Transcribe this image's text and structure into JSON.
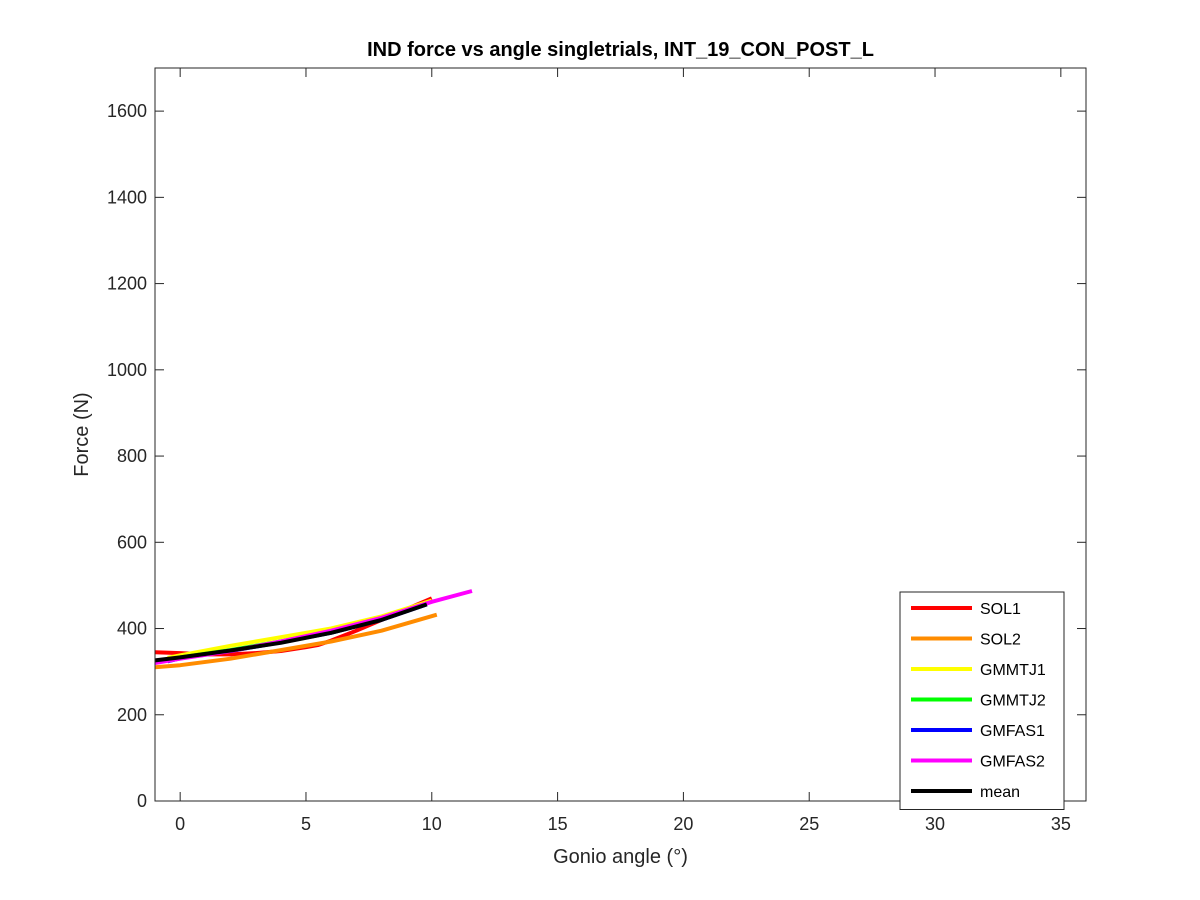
{
  "chart_data": {
    "type": "line",
    "title": "IND force vs angle singletrials, INT_19_CON_POST_L",
    "xlabel": "Gonio angle (°)",
    "ylabel": "Force (N)",
    "xlim": [
      -1,
      36
    ],
    "ylim": [
      0,
      1700
    ],
    "xticks": [
      0,
      5,
      10,
      15,
      20,
      25,
      30,
      35
    ],
    "yticks": [
      0,
      200,
      400,
      600,
      800,
      1000,
      1200,
      1400,
      1600
    ],
    "grid": false,
    "legend_position": "bottom-right",
    "series": [
      {
        "name": "SOL1",
        "color": "#ff0000",
        "x": [
          -1.0,
          0.0,
          1.0,
          2.0,
          3.0,
          4.0,
          5.0,
          5.5,
          6.0,
          7.0,
          8.0,
          9.0,
          10.0
        ],
        "y": [
          345,
          343,
          340,
          340,
          343,
          348,
          357,
          362,
          372,
          395,
          420,
          445,
          470
        ]
      },
      {
        "name": "SOL2",
        "color": "#ff8c00",
        "x": [
          -1.0,
          0.0,
          2.0,
          4.0,
          6.0,
          8.0,
          10.2
        ],
        "y": [
          310,
          315,
          330,
          350,
          370,
          395,
          432
        ]
      },
      {
        "name": "GMMTJ1",
        "color": "#ffff00",
        "x": [
          -0.5,
          0.0,
          2.0,
          4.0,
          6.0,
          8.0,
          10.0
        ],
        "y": [
          332,
          338,
          360,
          380,
          400,
          428,
          465
        ]
      },
      {
        "name": "GMMTJ2",
        "color": "#00ff00",
        "x": [
          -0.5,
          0.0,
          2.0,
          4.0,
          6.0,
          8.0,
          9.8
        ],
        "y": [
          326,
          333,
          350,
          370,
          393,
          422,
          458
        ]
      },
      {
        "name": "GMFAS1",
        "color": "#0000ff",
        "x": [
          -0.5,
          0.0,
          2.0,
          4.0,
          6.0,
          8.0,
          9.8
        ],
        "y": [
          324,
          331,
          348,
          368,
          390,
          420,
          456
        ]
      },
      {
        "name": "GMFAS2",
        "color": "#ff00ff",
        "x": [
          -1.0,
          0.0,
          2.0,
          4.0,
          6.0,
          8.0,
          10.0,
          11.6
        ],
        "y": [
          320,
          330,
          348,
          370,
          395,
          425,
          462,
          487
        ]
      },
      {
        "name": "mean",
        "color": "#000000",
        "x": [
          -1.0,
          0.0,
          2.0,
          4.0,
          6.0,
          8.0,
          9.8
        ],
        "y": [
          326,
          333,
          349,
          367,
          390,
          420,
          456
        ]
      }
    ]
  }
}
